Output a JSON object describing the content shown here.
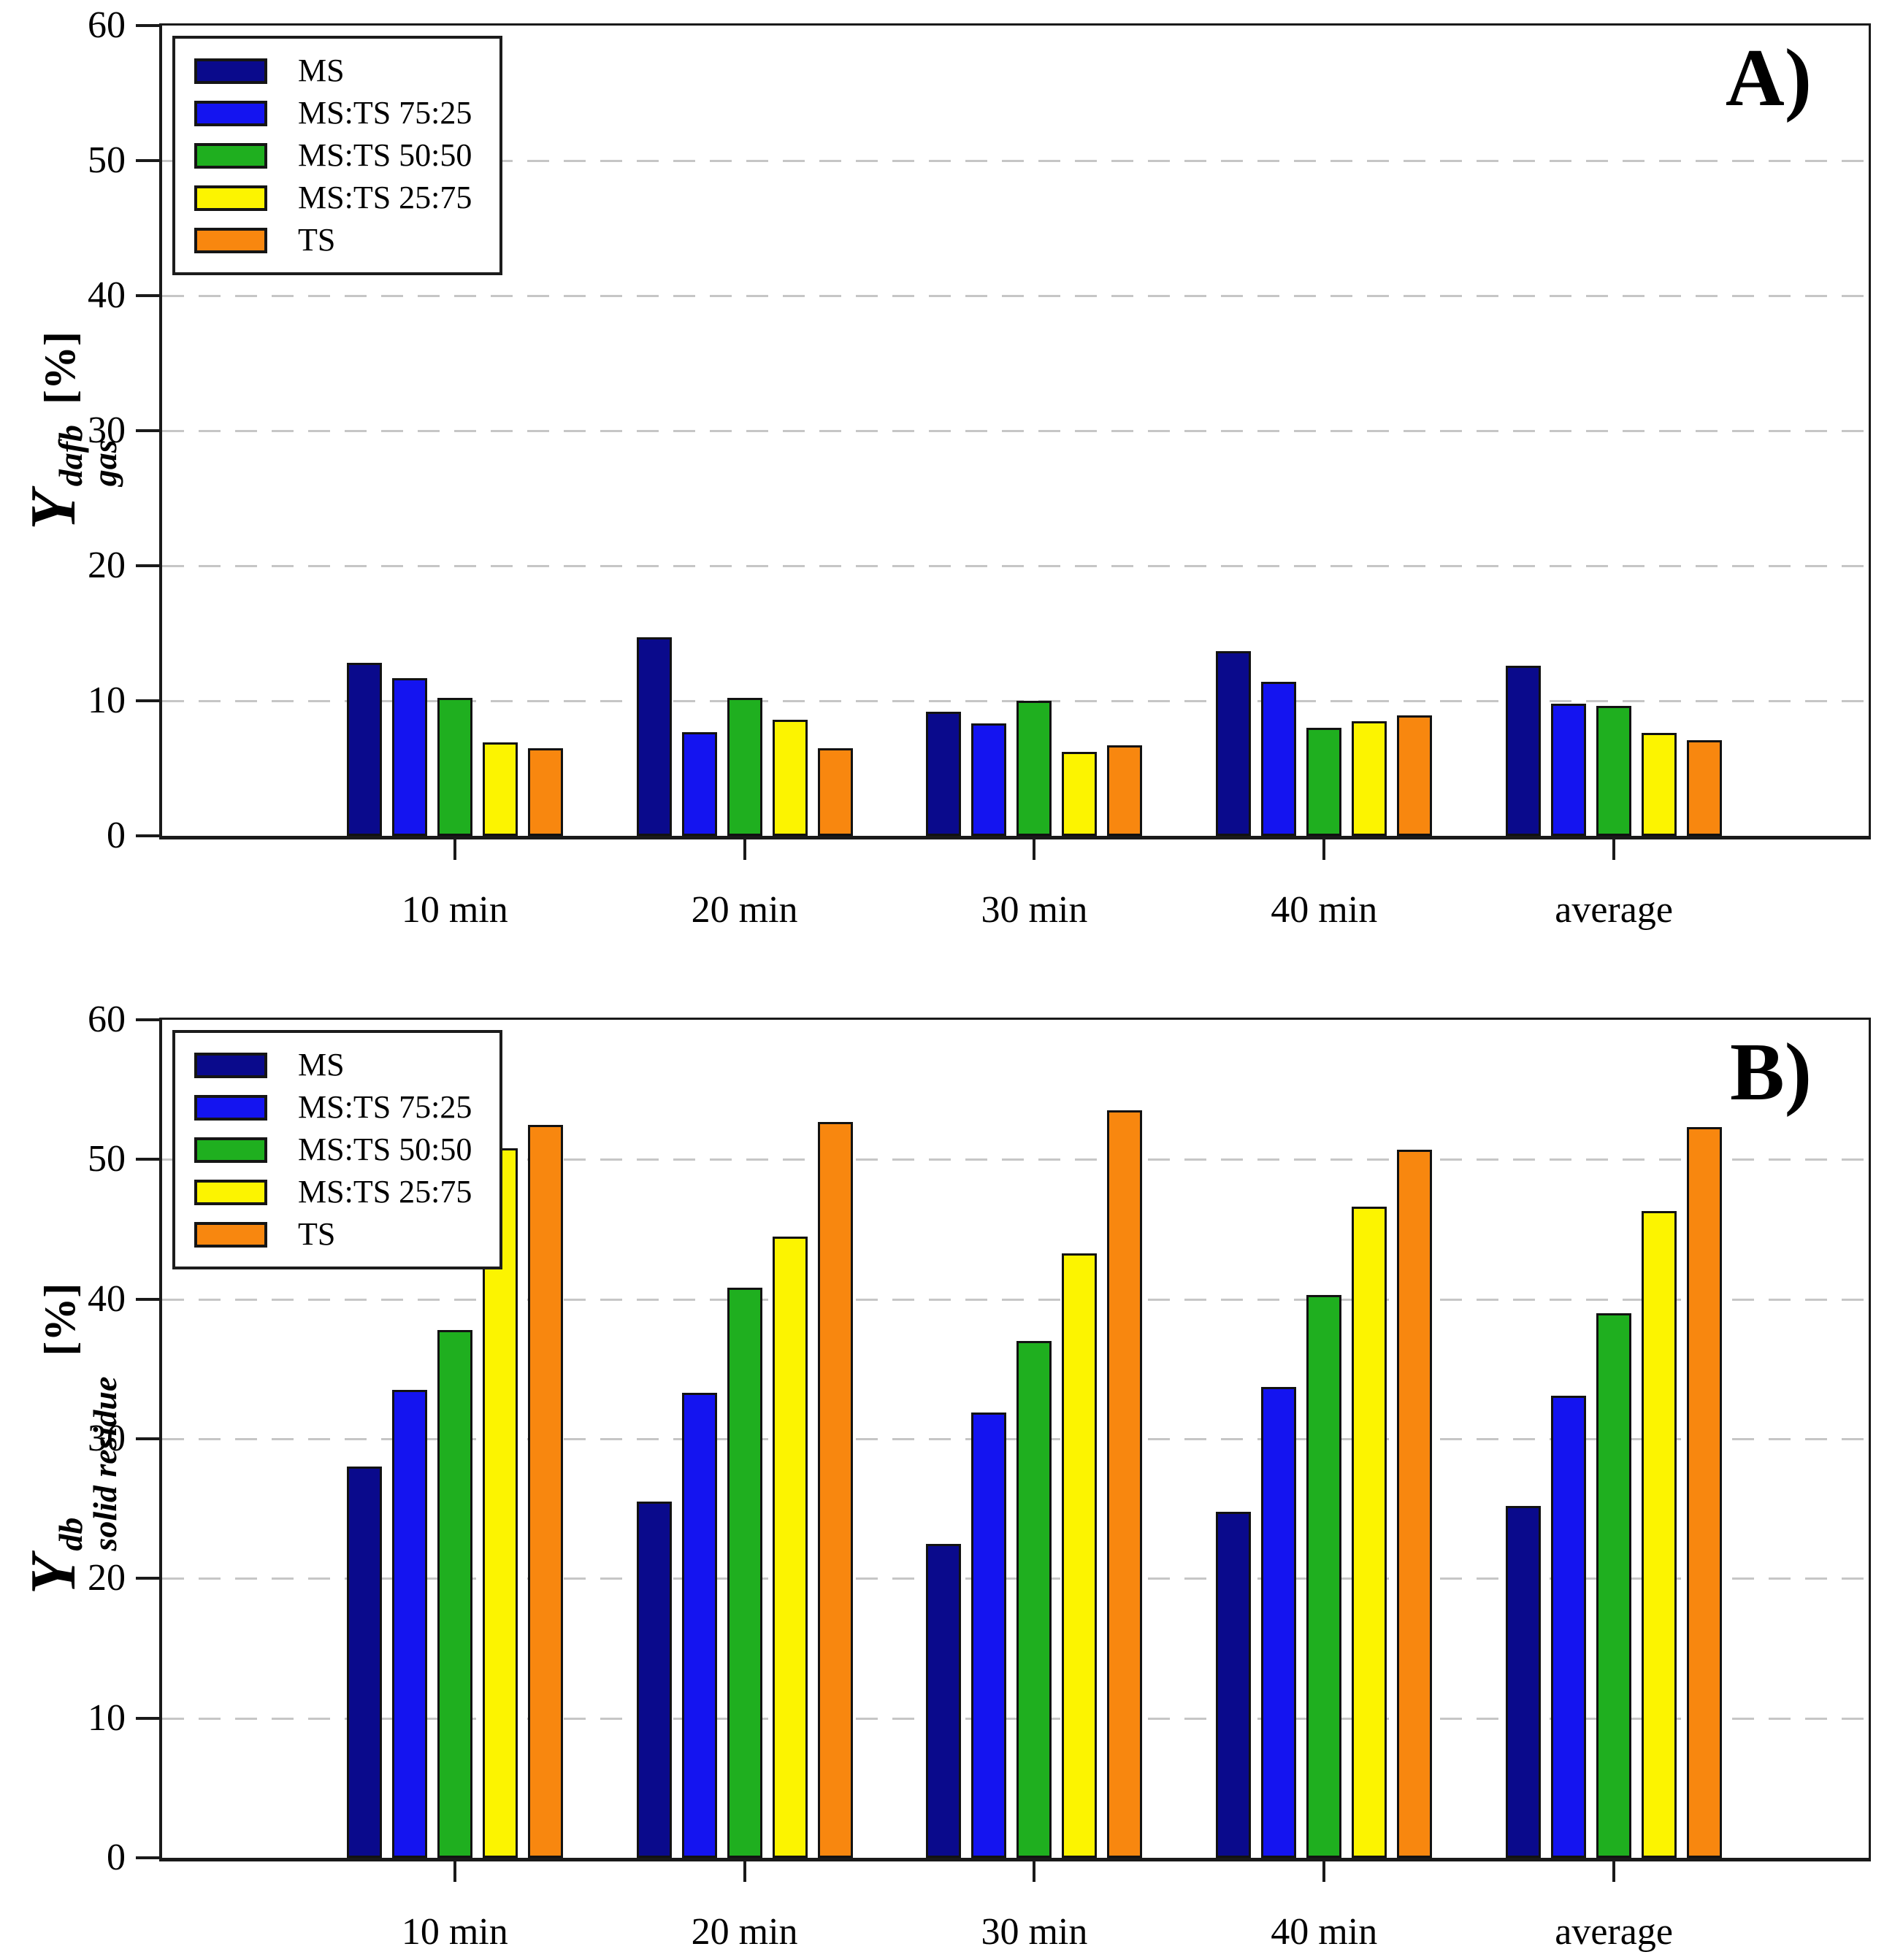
{
  "figure_title": "",
  "chart_data": [
    {
      "type": "bar",
      "panel": "A",
      "corner_label": "A)",
      "ylabel": {
        "symbol": "Y",
        "sup": "dafb",
        "sub": "gas",
        "unit": "[%]"
      },
      "ylim": [
        0,
        60
      ],
      "yticks": [
        0,
        10,
        20,
        30,
        40,
        50,
        60
      ],
      "grid": "horizontal dashed at 10,20,30,40,50",
      "legend_position": "upper-left",
      "categories": [
        "10 min",
        "20 min",
        "30 min",
        "40 min",
        "average"
      ],
      "series": [
        {
          "name": "MS",
          "color": "#0A0A8C",
          "values": [
            12.8,
            14.7,
            9.2,
            13.7,
            12.6
          ]
        },
        {
          "name": "MS:TS 75:25",
          "color": "#1414F0",
          "values": [
            11.7,
            7.7,
            8.3,
            11.4,
            9.8
          ]
        },
        {
          "name": "MS:TS 50:50",
          "color": "#1FAF1F",
          "values": [
            10.2,
            10.2,
            10.0,
            8.0,
            9.6
          ]
        },
        {
          "name": "MS:TS 25:75",
          "color": "#FCF400",
          "values": [
            6.9,
            8.6,
            6.2,
            8.5,
            7.6
          ]
        },
        {
          "name": "TS",
          "color": "#F8870F",
          "values": [
            6.5,
            6.5,
            6.7,
            8.9,
            7.1
          ]
        }
      ]
    },
    {
      "type": "bar",
      "panel": "B",
      "corner_label": "B)",
      "ylabel": {
        "symbol": "Y",
        "sup": "db",
        "sub": "solid residue",
        "unit": "[%]"
      },
      "ylim": [
        0,
        60
      ],
      "yticks": [
        0,
        10,
        20,
        30,
        40,
        50,
        60
      ],
      "grid": "horizontal dashed at 10,20,30,40,50",
      "legend_position": "upper-left",
      "categories": [
        "10 min",
        "20 min",
        "30 min",
        "40 min",
        "average"
      ],
      "series": [
        {
          "name": "MS",
          "color": "#0A0A8C",
          "values": [
            28.0,
            25.5,
            22.5,
            24.8,
            25.2
          ]
        },
        {
          "name": "MS:TS 75:25",
          "color": "#1414F0",
          "values": [
            33.5,
            33.3,
            31.9,
            33.7,
            33.1
          ]
        },
        {
          "name": "MS:TS 50:50",
          "color": "#1FAF1F",
          "values": [
            37.8,
            40.8,
            37.0,
            40.3,
            39.0
          ]
        },
        {
          "name": "MS:TS 25:75",
          "color": "#FCF400",
          "values": [
            50.8,
            44.5,
            43.3,
            46.6,
            46.3
          ]
        },
        {
          "name": "TS",
          "color": "#F8870F",
          "values": [
            52.5,
            52.7,
            53.5,
            50.7,
            52.3
          ]
        }
      ]
    }
  ]
}
